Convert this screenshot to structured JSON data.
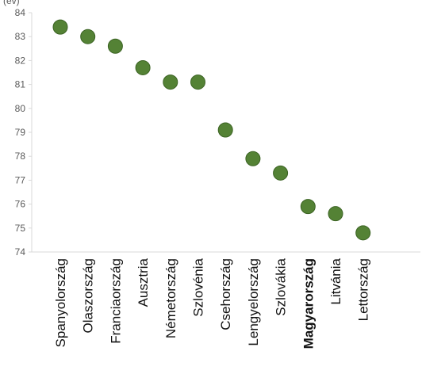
{
  "chart_data": {
    "type": "scatter",
    "title": "",
    "ylabel": "(év)",
    "xlabel": "",
    "categories": [
      "Spanyolország",
      "Olaszország",
      "Franciaország",
      "Ausztria",
      "Németország",
      "Szlovénia",
      "Csehország",
      "Lengyelország",
      "Szlovákia",
      "Magyarország",
      "Litvánia",
      "Lettország"
    ],
    "values": [
      83.4,
      83.0,
      82.6,
      81.7,
      81.1,
      81.1,
      79.1,
      77.9,
      77.3,
      75.9,
      75.6,
      74.8
    ],
    "highlighted_category": "Magyarország",
    "ylim": [
      74,
      84
    ],
    "yticks": [
      74,
      75,
      76,
      77,
      78,
      79,
      80,
      81,
      82,
      83,
      84
    ],
    "grid": false,
    "legend": "none",
    "colors": {
      "marker": "#548235",
      "marker_stroke": "#3b6323",
      "axis": "#d9d9d9",
      "text": "#595959"
    }
  }
}
